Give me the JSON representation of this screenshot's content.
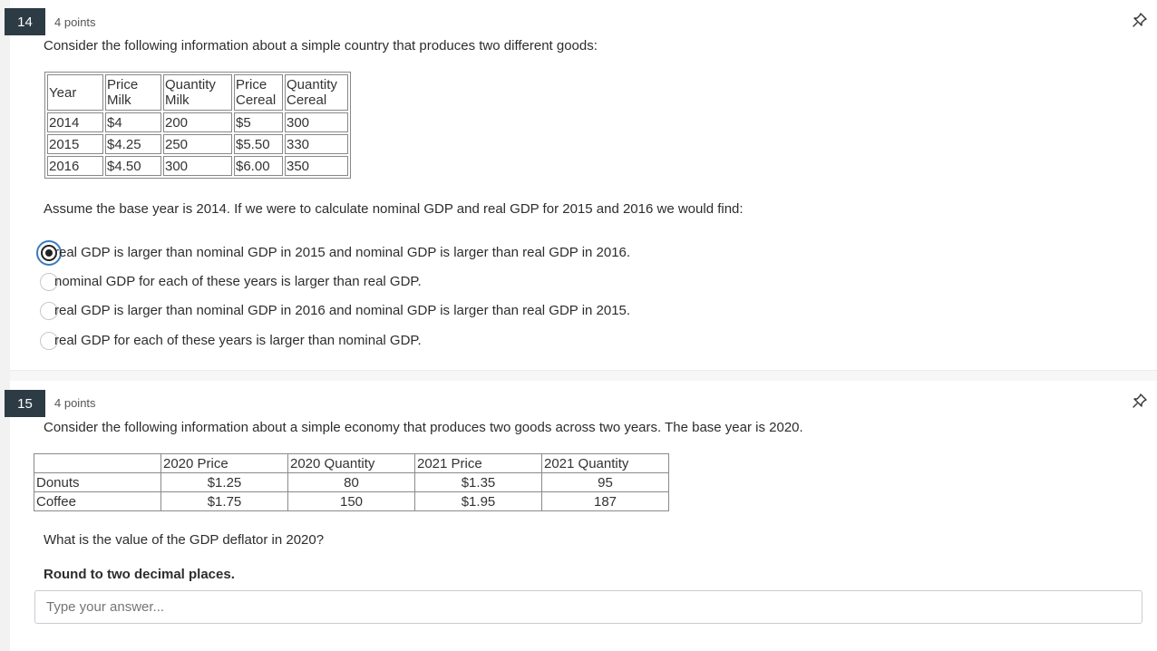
{
  "q14": {
    "number": "14",
    "points": "4 points",
    "prompt": "Consider the following information about a simple country that produces two different goods:",
    "table": {
      "headers": [
        [
          "Year"
        ],
        [
          "Price",
          "Milk"
        ],
        [
          "Quantity",
          "Milk"
        ],
        [
          "Price",
          "Cereal"
        ],
        [
          "Quantity",
          "Cereal"
        ]
      ],
      "rows": [
        [
          "2014",
          "$4",
          "200",
          "$5",
          "300"
        ],
        [
          "2015",
          "$4.25",
          "250",
          "$5.50",
          "330"
        ],
        [
          "2016",
          "$4.50",
          "300",
          "$6.00",
          "350"
        ]
      ]
    },
    "question": "Assume the base year is 2014.  If we were to calculate nominal GDP and real GDP for 2015 and 2016 we would find:",
    "options": [
      "real GDP is larger than nominal GDP in 2015 and nominal GDP is larger than real GDP in 2016.",
      "nominal GDP for each of these years is larger than real GDP.",
      "real GDP is larger than nominal GDP in 2016 and nominal GDP is larger than real GDP in 2015.",
      "real GDP for each of these years is larger than nominal GDP."
    ],
    "selected_option": 0
  },
  "q15": {
    "number": "15",
    "points": "4 points",
    "prompt": "Consider the following information about a simple economy that produces two goods across two years.  The base year is 2020.",
    "table": {
      "headers": [
        "",
        "2020 Price",
        "2020 Quantity",
        "2021 Price",
        "2021 Quantity"
      ],
      "rows": [
        [
          "Donuts",
          "$1.25",
          "80",
          "$1.35",
          "95"
        ],
        [
          "Coffee",
          "$1.75",
          "150",
          "$1.95",
          "187"
        ]
      ]
    },
    "question": "What is the value of the GDP deflator in 2020?",
    "instruction": "Round to two decimal places.",
    "answer_placeholder": "Type your answer...",
    "answer_value": ""
  },
  "icons": {
    "pin": "pin-icon"
  }
}
